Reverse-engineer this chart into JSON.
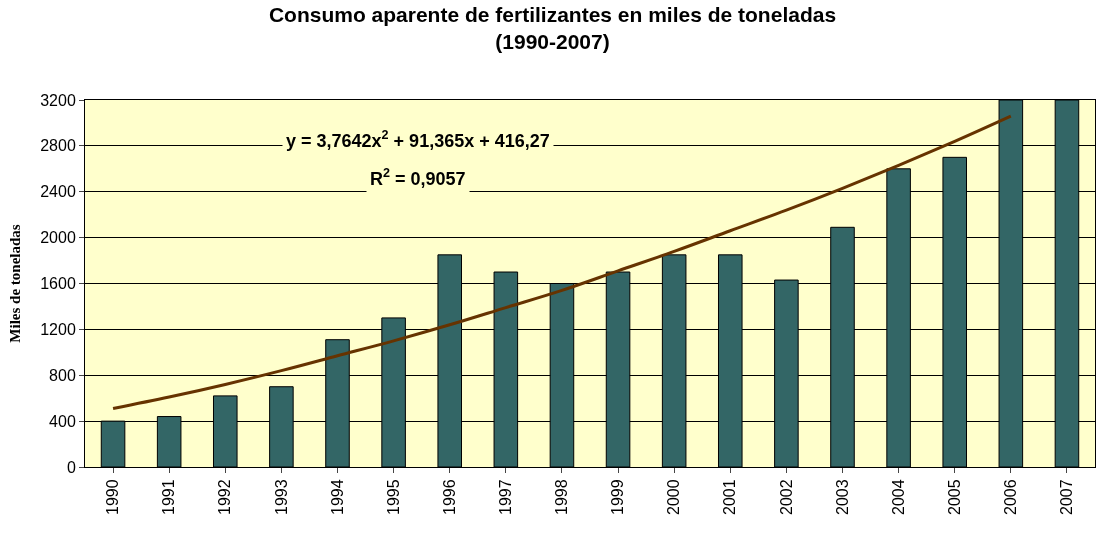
{
  "chart_data": {
    "type": "bar",
    "title": "Consumo aparente de fertilizantes en miles de toneladas",
    "subtitle": "(1990-2007)",
    "ylabel": "Miles de toneladas",
    "categories": [
      "1990",
      "1991",
      "1992",
      "1993",
      "1994",
      "1995",
      "1996",
      "1997",
      "1998",
      "1999",
      "2000",
      "2001",
      "2002",
      "2003",
      "2004",
      "2005",
      "2006",
      "2007"
    ],
    "series": [
      {
        "color": "#336666",
        "values": [
          400,
          440,
          620,
          700,
          1110,
          1300,
          1850,
          1700,
          1600,
          1700,
          1850,
          1850,
          1630,
          2090,
          2600,
          2700,
          3200,
          3200
        ]
      },
      {
        "type": "line",
        "color": "#663300",
        "marker": "none",
        "line_style": "solid",
        "values": [
          510,
          610,
          720,
          840,
          970,
          1100,
          1240,
          1390,
          1540,
          1710,
          1880,
          2060,
          2240,
          2430,
          2630,
          2840,
          3060,
          null
        ]
      }
    ],
    "annotations": [
      "y = 3,7642x$^{2}$ + 91,365x + 416,27",
      "R$^{2}$ = 0,9057"
    ],
    "ylim": [
      0,
      3200
    ],
    "yticks": [
      0,
      400,
      800,
      1200,
      1600,
      2000,
      2400,
      2800,
      3200
    ],
    "grid": "y"
  }
}
